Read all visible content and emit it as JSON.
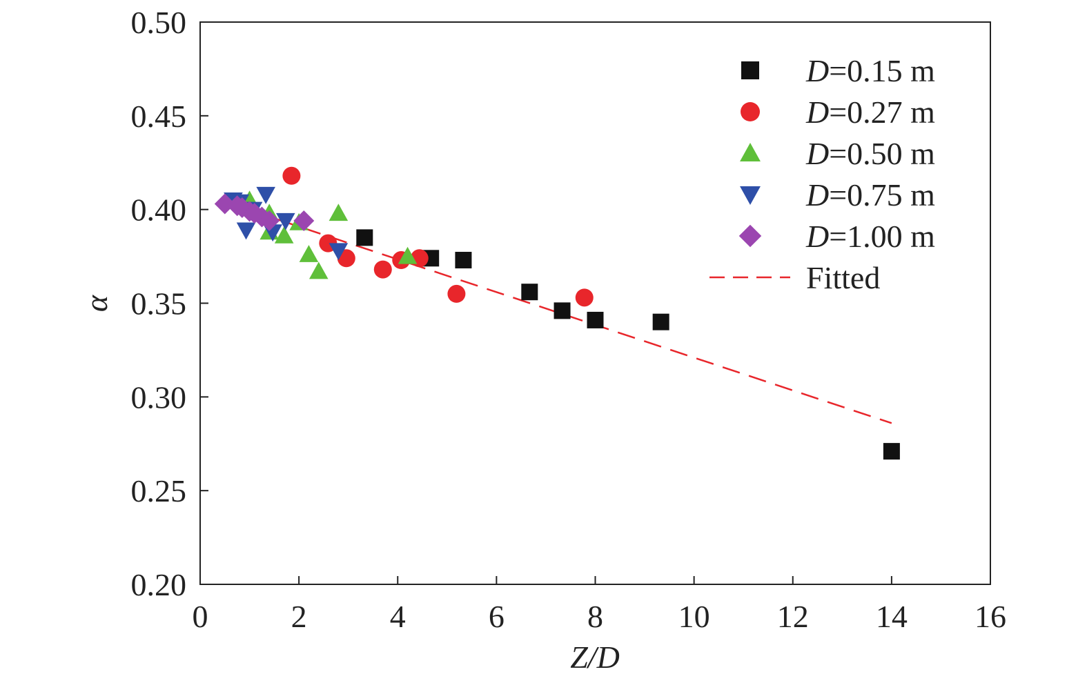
{
  "chart_data": {
    "type": "scatter",
    "xlabel": "Z/D",
    "ylabel": "α",
    "xlim": [
      0,
      16
    ],
    "ylim": [
      0.2,
      0.5
    ],
    "x_ticks": [
      "0",
      "2",
      "4",
      "6",
      "8",
      "10",
      "12",
      "14",
      "16"
    ],
    "y_ticks": [
      "0.20",
      "0.25",
      "0.30",
      "0.35",
      "0.40",
      "0.45",
      "0.50"
    ],
    "grid": false,
    "legend_position": "top-right",
    "series": [
      {
        "name": "D=0.15 m",
        "name_italic": "D",
        "name_rest": "=0.15 m",
        "marker": "square",
        "color": "#111111",
        "points": [
          [
            3.33,
            0.385
          ],
          [
            4.67,
            0.374
          ],
          [
            5.33,
            0.373
          ],
          [
            6.67,
            0.356
          ],
          [
            7.33,
            0.346
          ],
          [
            8.0,
            0.341
          ],
          [
            9.33,
            0.34
          ],
          [
            14.0,
            0.271
          ]
        ]
      },
      {
        "name": "D=0.27 m",
        "name_italic": "D",
        "name_rest": "=0.27 m",
        "marker": "circle",
        "color": "#e8262b",
        "points": [
          [
            1.85,
            0.418
          ],
          [
            2.59,
            0.382
          ],
          [
            2.96,
            0.374
          ],
          [
            3.7,
            0.368
          ],
          [
            4.07,
            0.373
          ],
          [
            4.44,
            0.374
          ],
          [
            5.19,
            0.355
          ],
          [
            7.78,
            0.353
          ]
        ]
      },
      {
        "name": "D=0.50 m",
        "name_italic": "D",
        "name_rest": "=0.50 m",
        "marker": "triangle-up",
        "color": "#5fbf3a",
        "points": [
          [
            1.0,
            0.405
          ],
          [
            1.4,
            0.398
          ],
          [
            1.4,
            0.388
          ],
          [
            1.7,
            0.386
          ],
          [
            2.0,
            0.393
          ],
          [
            2.2,
            0.376
          ],
          [
            2.4,
            0.367
          ],
          [
            2.8,
            0.398
          ],
          [
            4.2,
            0.375
          ]
        ]
      },
      {
        "name": "D=0.75 m",
        "name_italic": "D",
        "name_rest": "=0.75 m",
        "marker": "triangle-down",
        "color": "#2e4fa8",
        "points": [
          [
            0.67,
            0.405
          ],
          [
            0.8,
            0.404
          ],
          [
            0.93,
            0.389
          ],
          [
            1.07,
            0.4
          ],
          [
            1.33,
            0.408
          ],
          [
            1.47,
            0.388
          ],
          [
            1.73,
            0.394
          ],
          [
            2.8,
            0.378
          ]
        ]
      },
      {
        "name": "D=1.00 m",
        "name_italic": "D",
        "name_rest": "=1.00 m",
        "marker": "diamond",
        "color": "#9b46b0",
        "points": [
          [
            0.5,
            0.403
          ],
          [
            0.75,
            0.402
          ],
          [
            0.85,
            0.401
          ],
          [
            1.0,
            0.399
          ],
          [
            1.1,
            0.398
          ],
          [
            1.25,
            0.396
          ],
          [
            1.4,
            0.394
          ],
          [
            2.1,
            0.394
          ]
        ]
      }
    ],
    "fit": {
      "name": "Fitted",
      "color": "#e8262b",
      "style": "dashed",
      "x": [
        0.5,
        14.0
      ],
      "y": [
        0.404,
        0.286
      ]
    }
  }
}
